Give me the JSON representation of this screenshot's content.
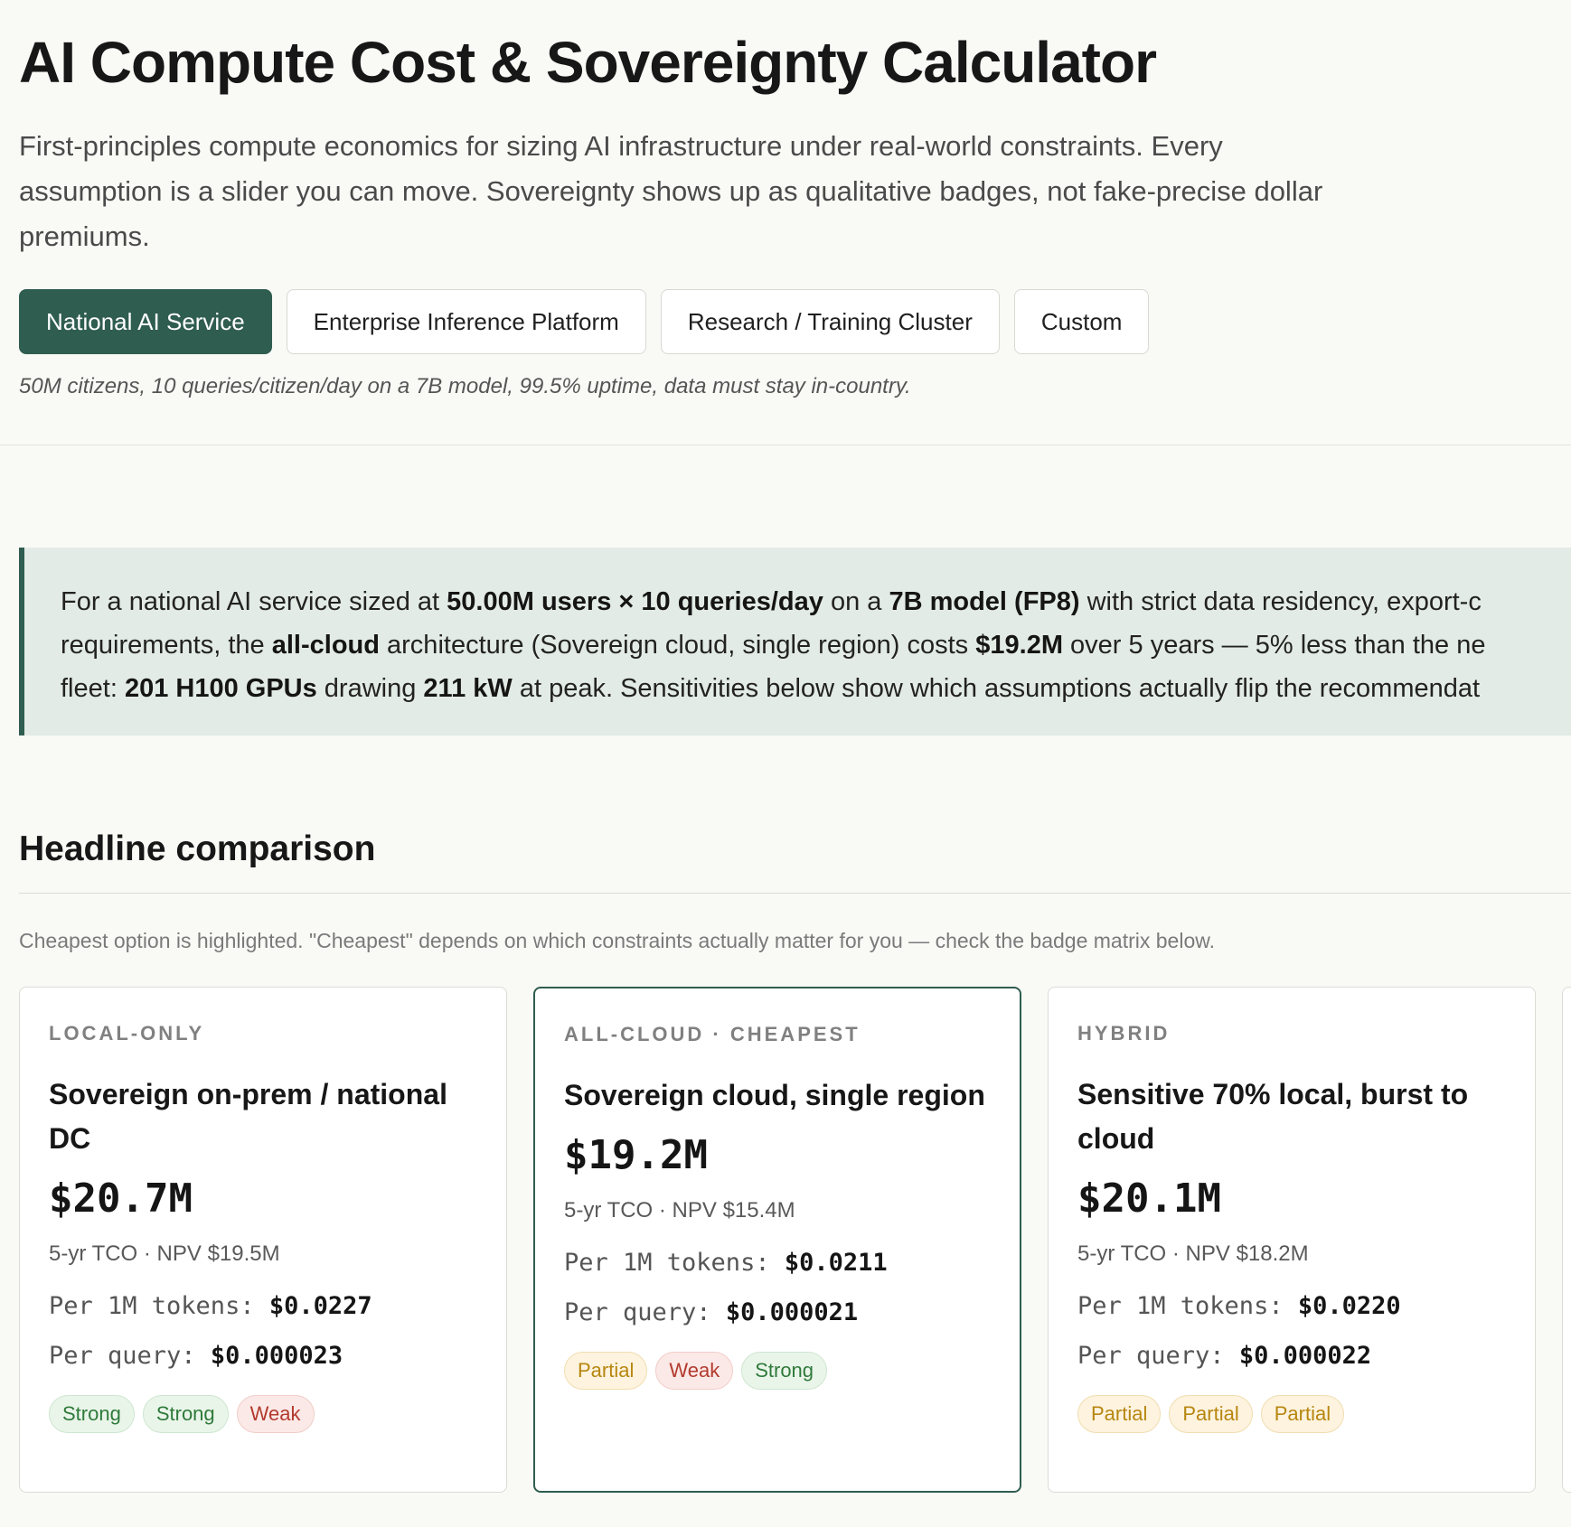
{
  "page": {
    "title": "AI Compute Cost & Sovereignty Calculator",
    "intro": "First-principles compute economics for sizing AI infrastructure under real-world constraints. Every assumption is a slider you can move. Sovereignty shows up as qualitative badges, not fake-precise dollar premiums."
  },
  "presets": {
    "items": [
      {
        "label": "National AI Service",
        "active": true
      },
      {
        "label": "Enterprise Inference Platform",
        "active": false
      },
      {
        "label": "Research / Training Cluster",
        "active": false
      },
      {
        "label": "Custom",
        "active": false
      }
    ],
    "description": "50M citizens, 10 queries/citizen/day on a 7B model, 99.5% uptime, data must stay in-country."
  },
  "summary": {
    "l1_a": "For a national AI service sized at ",
    "l1_b": "50.00M users × 10 queries/day",
    "l1_c": " on a ",
    "l1_d": "7B model (FP8)",
    "l1_e": " with strict data residency, export-c",
    "l2_a": "requirements, the ",
    "l2_b": "all-cloud",
    "l2_c": " architecture (Sovereign cloud, single region) costs ",
    "l2_d": "$19.2M",
    "l2_e": " over 5 years — 5% less than the ne",
    "l3_a": "fleet: ",
    "l3_b": "201 H100 GPUs",
    "l3_c": " drawing ",
    "l3_d": "211 kW",
    "l3_e": " at peak. Sensitivities below show which assumptions actually flip the recommendat"
  },
  "headline": {
    "title": "Headline comparison",
    "note": "Cheapest option is highlighted. \"Cheapest\" depends on which constraints actually matter for you — check the badge matrix below."
  },
  "cards": [
    {
      "eyebrow": "LOCAL-ONLY",
      "title": "Sovereign on-prem / national DC",
      "price": "$20.7M",
      "tco": "5-yr TCO · NPV $19.5M",
      "per_token_label": "Per 1M tokens: ",
      "per_token": "$0.0227",
      "per_query_label": "Per query: ",
      "per_query": "$0.000023",
      "badges": [
        {
          "label": "Strong",
          "level": "strong"
        },
        {
          "label": "Strong",
          "level": "strong"
        },
        {
          "label": "Weak",
          "level": "weak"
        }
      ]
    },
    {
      "eyebrow": "ALL-CLOUD · CHEAPEST",
      "title": "Sovereign cloud, single region",
      "price": "$19.2M",
      "tco": "5-yr TCO · NPV $15.4M",
      "per_token_label": "Per 1M tokens: ",
      "per_token": "$0.0211",
      "per_query_label": "Per query: ",
      "per_query": "$0.000021",
      "badges": [
        {
          "label": "Partial",
          "level": "partial"
        },
        {
          "label": "Weak",
          "level": "weak"
        },
        {
          "label": "Strong",
          "level": "strong"
        }
      ]
    },
    {
      "eyebrow": "HYBRID",
      "title": "Sensitive 70% local, burst to cloud",
      "price": "$20.1M",
      "tco": "5-yr TCO · NPV $18.2M",
      "per_token_label": "Per 1M tokens: ",
      "per_token": "$0.0220",
      "per_query_label": "Per query: ",
      "per_query": "$0.000022",
      "badges": [
        {
          "label": "Partial",
          "level": "partial"
        },
        {
          "label": "Partial",
          "level": "partial"
        },
        {
          "label": "Partial",
          "level": "partial"
        }
      ]
    }
  ],
  "colors": {
    "accent": "#2f5d4f",
    "background": "#f9f9f6",
    "summary_bg": "#e3ebe6",
    "strong": "#2f7a3a",
    "weak": "#b23a2e",
    "partial": "#b7860f"
  }
}
